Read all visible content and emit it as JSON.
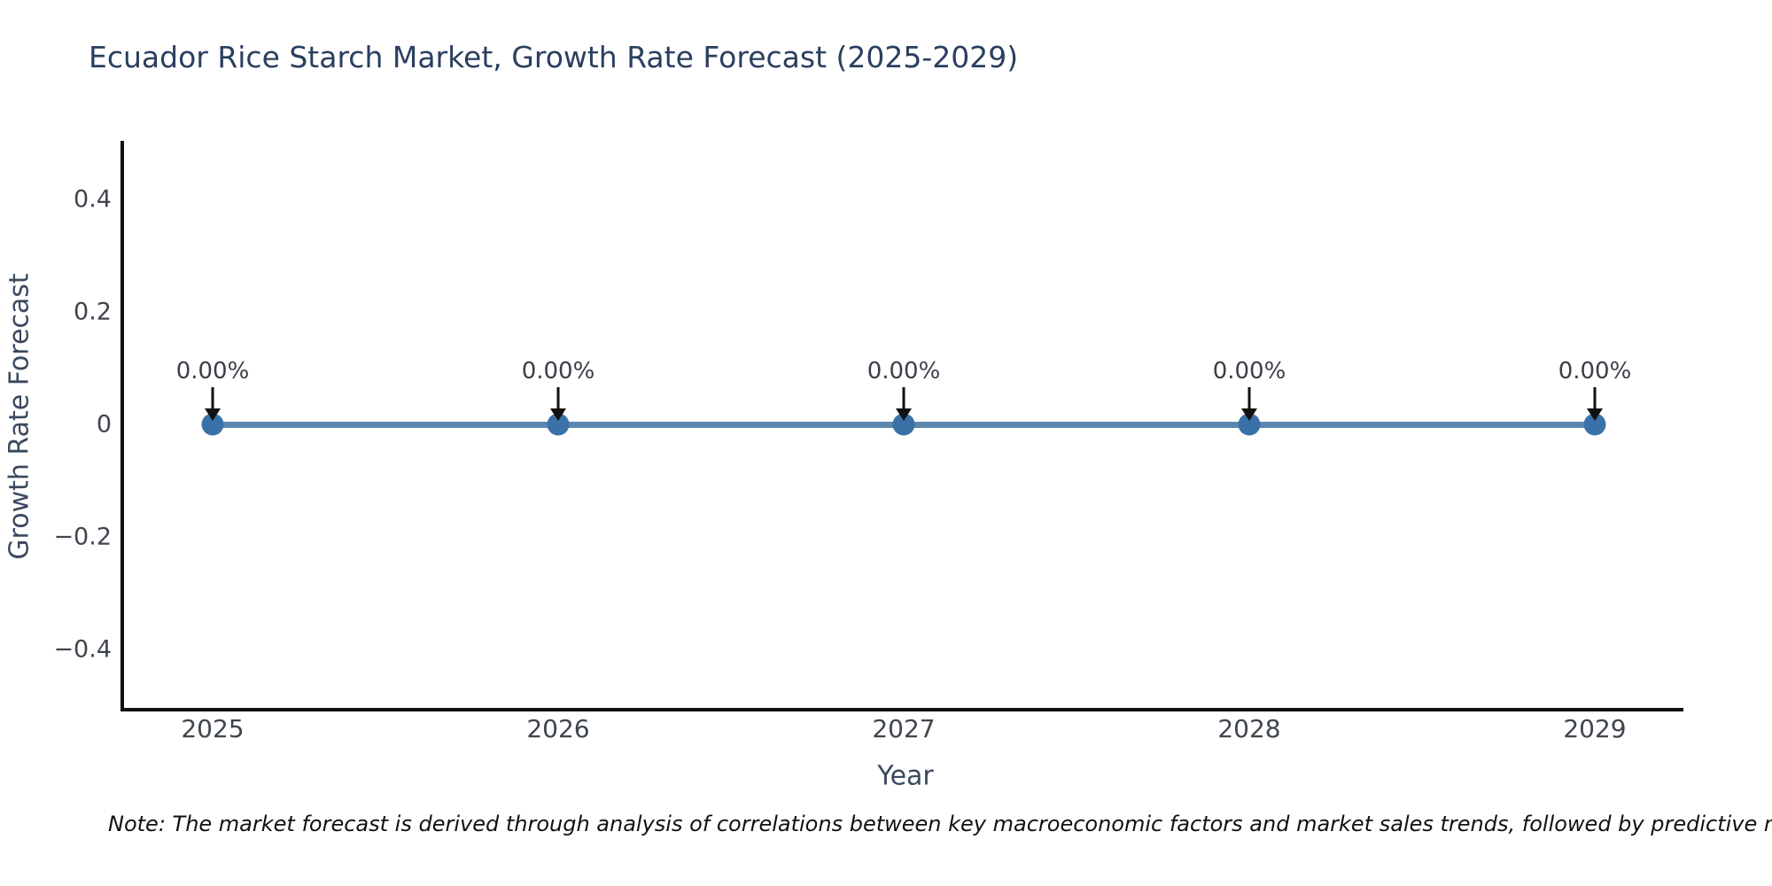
{
  "title": "Ecuador Rice Starch Market, Growth Rate Forecast (2025-2029)",
  "note": "Note: The market forecast is derived through analysis of correlations between key macroeconomic factors and market sales trends, followed by predictive modeling to project future sales",
  "chart_data": {
    "type": "line",
    "title": "Ecuador Rice Starch Market, Growth Rate Forecast (2025-2029)",
    "xlabel": "Year",
    "ylabel": "Growth Rate Forecast",
    "x": [
      "2025",
      "2026",
      "2027",
      "2028",
      "2029"
    ],
    "series": [
      {
        "name": "Growth Rate Forecast",
        "values": [
          0,
          0,
          0,
          0,
          0
        ]
      }
    ],
    "point_labels": [
      "0.00%",
      "0.00%",
      "0.00%",
      "0.00%",
      "0.00%"
    ],
    "yticks": [
      "0.4",
      "0.2",
      "0",
      "−0.2",
      "−0.4"
    ],
    "ylim": [
      -0.5,
      0.5
    ],
    "grid": false,
    "legend_position": "none",
    "annotations_style": "value label above each point with downward black arrow",
    "colors": {
      "line": "#5b87ad",
      "marker": "#3a72a8",
      "arrow": "#111111",
      "axis": "#111111",
      "title": "#2a3f5f",
      "axis_title": "#3a495e",
      "tick": "#3f454e",
      "annotation": "#3a3f47",
      "note": "#111111",
      "background": "#ffffff"
    }
  }
}
